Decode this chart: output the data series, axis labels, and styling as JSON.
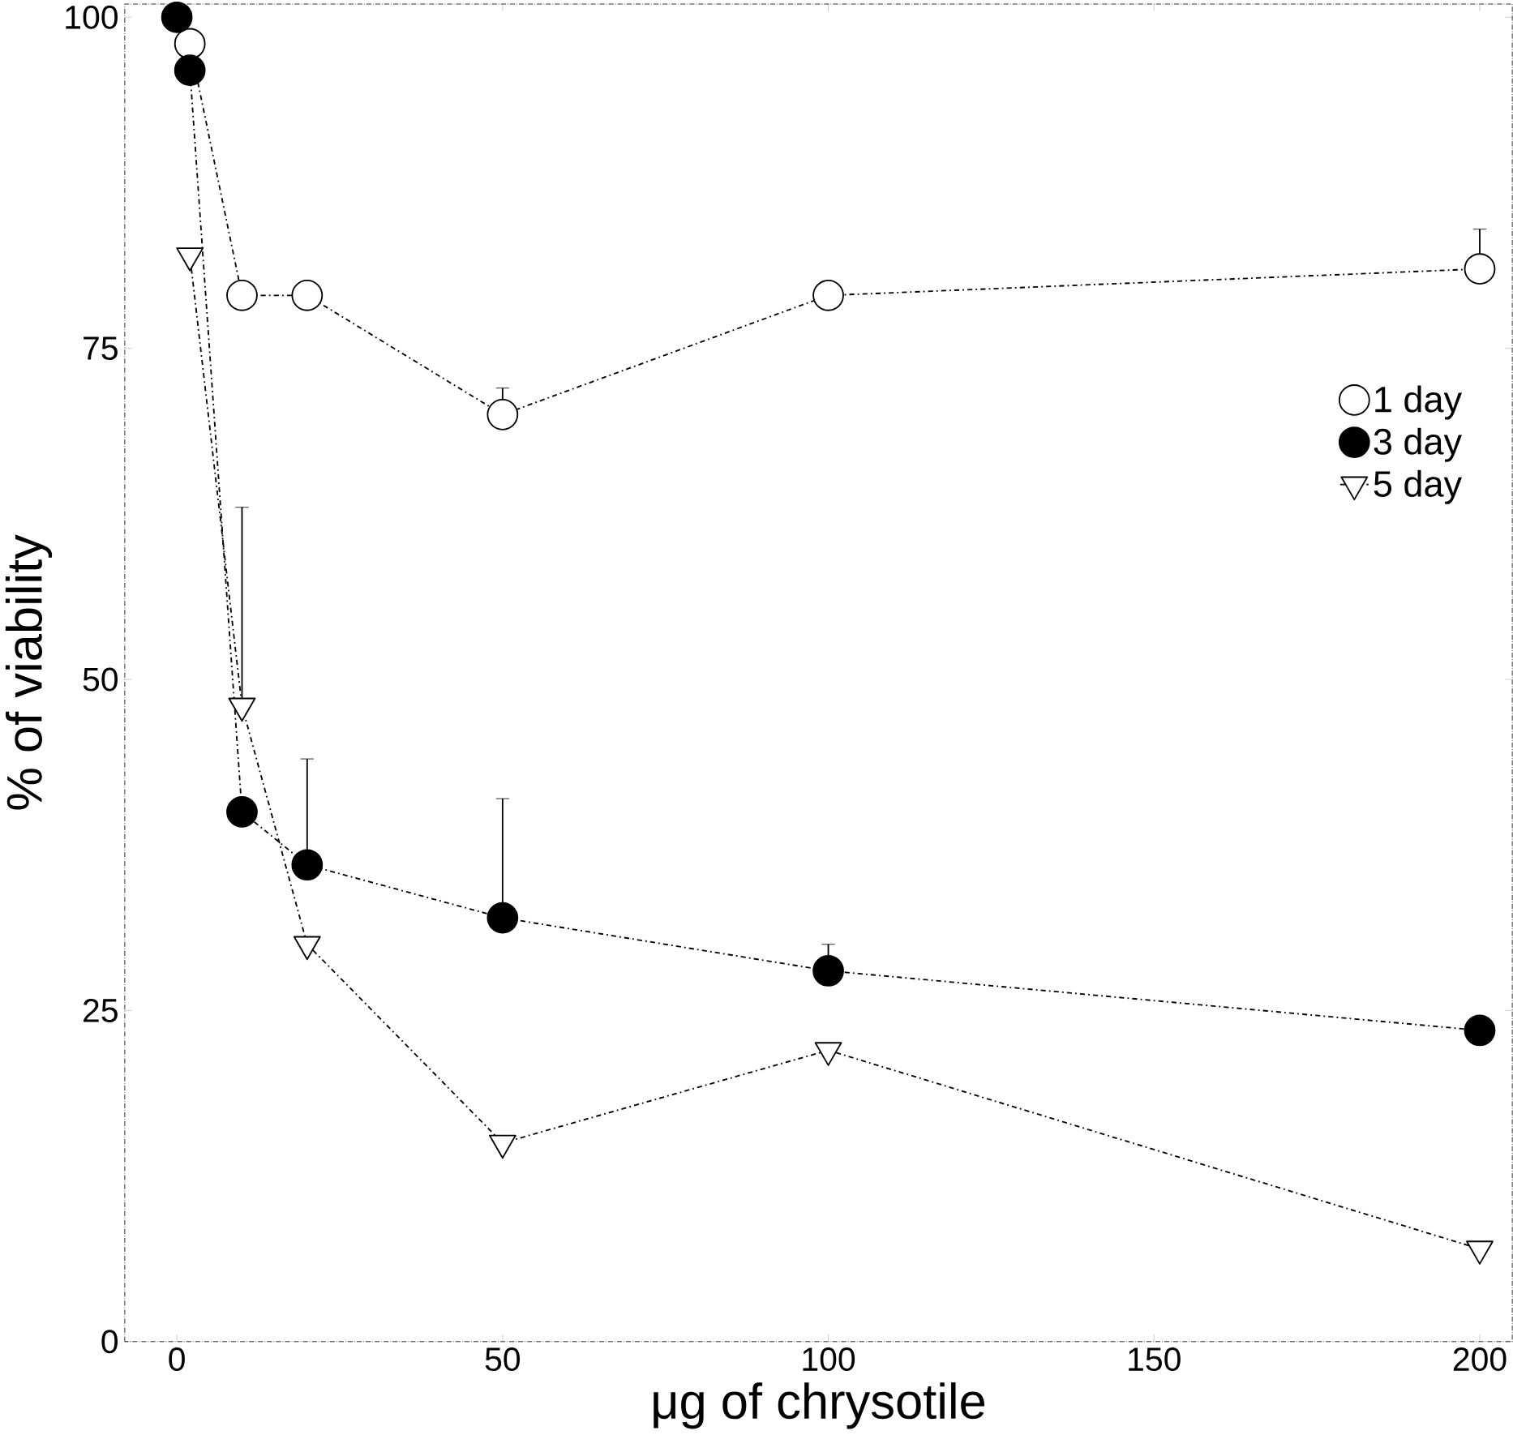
{
  "chart_data": {
    "type": "line",
    "xlabel": "μg of chrysotile",
    "ylabel": "% of viability",
    "xlim": [
      -8,
      205
    ],
    "ylim": [
      0,
      101
    ],
    "xticks": [
      0,
      50,
      100,
      150,
      200
    ],
    "yticks": [
      0,
      25,
      50,
      75,
      100
    ],
    "legend": "right",
    "line_style": "dashed",
    "grid": false,
    "series": [
      {
        "name": "1 day",
        "color": "#ffffff",
        "marker": "circle",
        "x": [
          2,
          10,
          20,
          50,
          100,
          200
        ],
        "values": [
          98,
          79,
          79,
          70,
          79,
          81
        ],
        "errors": [
          null,
          null,
          null,
          [
            70,
            72
          ],
          null,
          [
            81,
            84
          ]
        ]
      },
      {
        "name": "3 day",
        "color": "#000000",
        "marker": "circle",
        "x": [
          0,
          2,
          10,
          20,
          50,
          100,
          200
        ],
        "values": [
          100,
          96,
          40,
          36,
          32,
          28,
          23.5
        ],
        "errors": [
          null,
          null,
          null,
          [
            36,
            44
          ],
          [
            32,
            41
          ],
          [
            28,
            30
          ],
          null
        ]
      },
      {
        "name": "5 day",
        "color": "#ffffff",
        "marker": "triangle",
        "x": [
          2,
          10,
          20,
          50,
          100,
          200
        ],
        "values": [
          82,
          48,
          30,
          15,
          22,
          7
        ],
        "errors": [
          null,
          [
            48,
            63
          ],
          null,
          null,
          null,
          null
        ]
      }
    ]
  }
}
